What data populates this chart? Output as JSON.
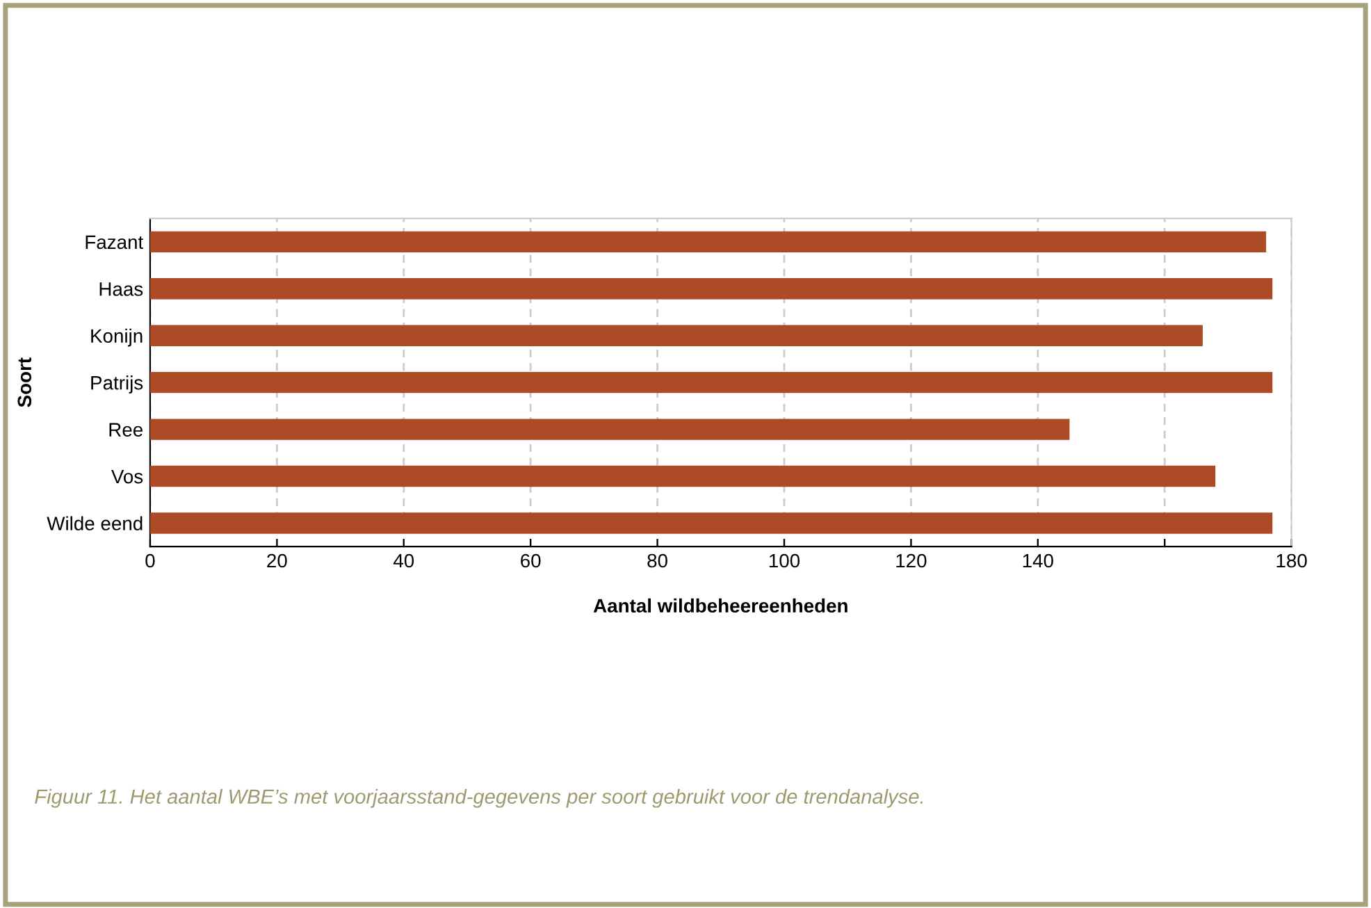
{
  "chart_data": {
    "type": "bar",
    "orientation": "horizontal",
    "ylabel": "Soort",
    "xlabel": "Aantal wildbeheereenheden",
    "categories": [
      "Fazant",
      "Haas",
      "Konijn",
      "Patrijs",
      "Ree",
      "Vos",
      "Wilde eend"
    ],
    "values": [
      176,
      177,
      166,
      177,
      145,
      168,
      177
    ],
    "color": "#ad4b27",
    "xlim": [
      0,
      180
    ],
    "xticks": [
      0,
      20,
      40,
      60,
      80,
      100,
      120,
      140,
      {
        "value": 160,
        "label": null
      },
      180
    ],
    "grid": "x",
    "annotations": [
      "Figuur 11. Het aantal WBE’s met voorjaarsstand-gegevens per soort gebruikt voor de trendanalyse."
    ]
  }
}
